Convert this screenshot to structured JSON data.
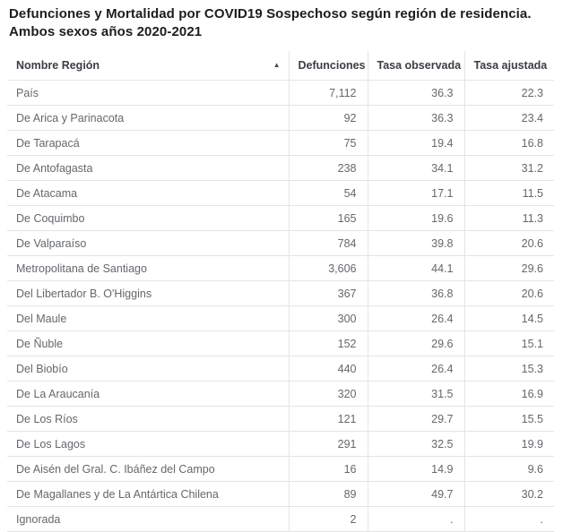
{
  "title": "Defunciones y Mortalidad por COVID19 Sospechoso según región de residencia. Ambos sexos años 2020-2021",
  "table": {
    "columns": [
      "Nombre Región",
      "Defunciones",
      "Tasa observada",
      "Tasa ajustada"
    ],
    "sort_icon": "▲",
    "rows": [
      [
        "País",
        "7,112",
        "36.3",
        "22.3"
      ],
      [
        "De Arica y Parinacota",
        "92",
        "36.3",
        "23.4"
      ],
      [
        "De Tarapacá",
        "75",
        "19.4",
        "16.8"
      ],
      [
        "De Antofagasta",
        "238",
        "34.1",
        "31.2"
      ],
      [
        "De Atacama",
        "54",
        "17.1",
        "11.5"
      ],
      [
        "De Coquimbo",
        "165",
        "19.6",
        "11.3"
      ],
      [
        "De Valparaíso",
        "784",
        "39.8",
        "20.6"
      ],
      [
        "Metropolitana de Santiago",
        "3,606",
        "44.1",
        "29.6"
      ],
      [
        "Del Libertador B. O'Higgins",
        "367",
        "36.8",
        "20.6"
      ],
      [
        "Del Maule",
        "300",
        "26.4",
        "14.5"
      ],
      [
        "De Ñuble",
        "152",
        "29.6",
        "15.1"
      ],
      [
        "Del Biobío",
        "440",
        "26.4",
        "15.3"
      ],
      [
        "De La Araucanía",
        "320",
        "31.5",
        "16.9"
      ],
      [
        "De Los Ríos",
        "121",
        "29.7",
        "15.5"
      ],
      [
        "De Los Lagos",
        "291",
        "32.5",
        "19.9"
      ],
      [
        "De Aisén del Gral. C. Ibáñez del Campo",
        "16",
        "14.9",
        "9.6"
      ],
      [
        "De Magallanes y de La Antártica Chilena",
        "89",
        "49.7",
        "30.2"
      ],
      [
        "Ignorada",
        "2",
        ".",
        "."
      ]
    ]
  },
  "chart_data": {
    "type": "table",
    "title": "Defunciones y Mortalidad por COVID19 Sospechoso según región de residencia. Ambos sexos años 2020-2021",
    "columns": [
      "Nombre Región",
      "Defunciones",
      "Tasa observada",
      "Tasa ajustada"
    ],
    "categories": [
      "País",
      "De Arica y Parinacota",
      "De Tarapacá",
      "De Antofagasta",
      "De Atacama",
      "De Coquimbo",
      "De Valparaíso",
      "Metropolitana de Santiago",
      "Del Libertador B. O'Higgins",
      "Del Maule",
      "De Ñuble",
      "Del Biobío",
      "De La Araucanía",
      "De Los Ríos",
      "De Los Lagos",
      "De Aisén del Gral. C. Ibáñez del Campo",
      "De Magallanes y de La Antártica Chilena",
      "Ignorada"
    ],
    "series": [
      {
        "name": "Defunciones",
        "values": [
          7112,
          92,
          75,
          238,
          54,
          165,
          784,
          3606,
          367,
          300,
          152,
          440,
          320,
          121,
          291,
          16,
          89,
          2
        ]
      },
      {
        "name": "Tasa observada",
        "values": [
          36.3,
          36.3,
          19.4,
          34.1,
          17.1,
          19.6,
          39.8,
          44.1,
          36.8,
          26.4,
          29.6,
          26.4,
          31.5,
          29.7,
          32.5,
          14.9,
          49.7,
          null
        ]
      },
      {
        "name": "Tasa ajustada",
        "values": [
          22.3,
          23.4,
          16.8,
          31.2,
          11.5,
          11.3,
          20.6,
          29.6,
          20.6,
          14.5,
          15.1,
          15.3,
          16.9,
          15.5,
          19.9,
          9.6,
          30.2,
          null
        ]
      }
    ],
    "sort": {
      "column": "Nombre Región",
      "direction": "ascending"
    }
  },
  "colors": {
    "background": "#ffffff",
    "title_text": "#1b1d20",
    "header_text": "#3b3e42",
    "body_text": "#64676b",
    "border": "#e3e4e5"
  }
}
